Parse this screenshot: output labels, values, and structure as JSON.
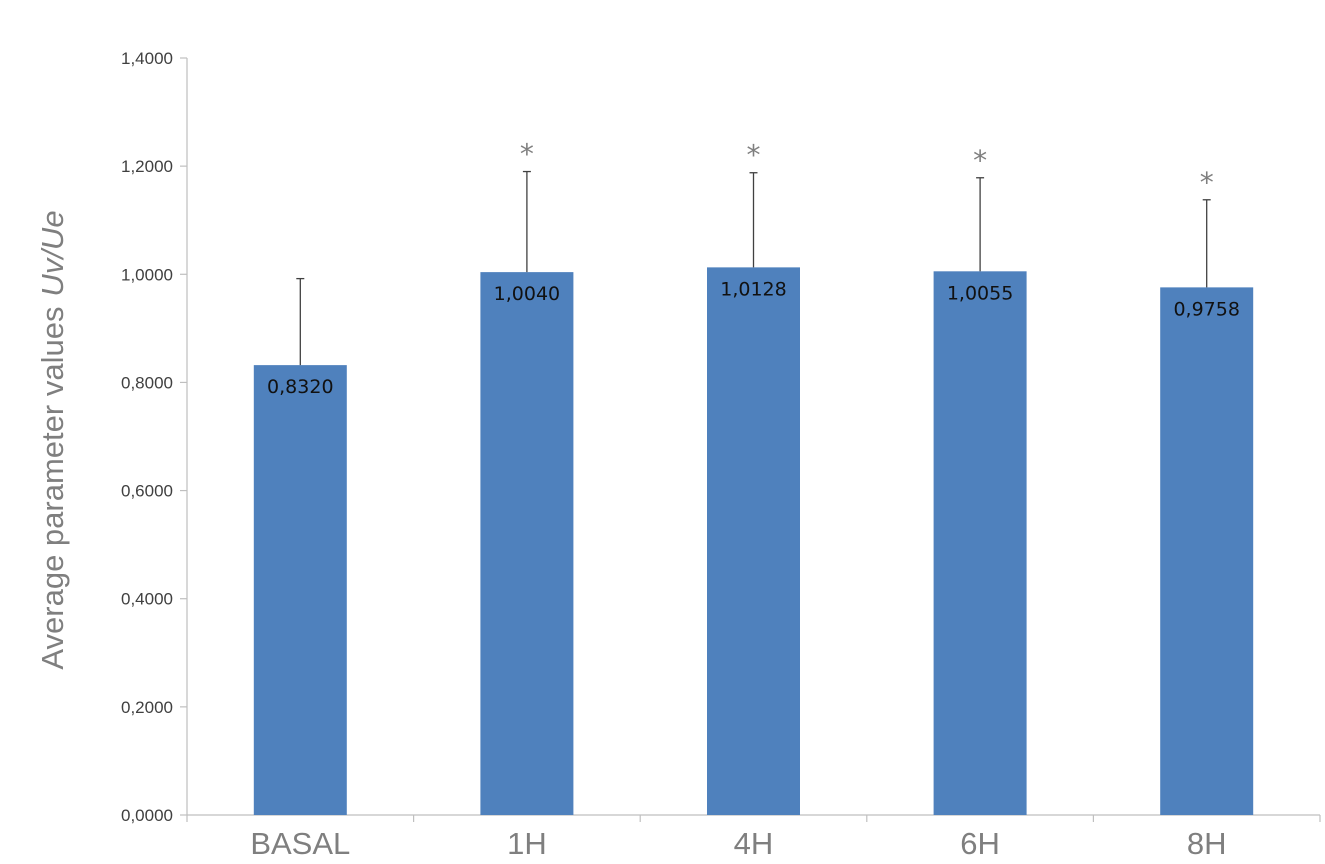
{
  "chart_data": {
    "type": "bar",
    "categories": [
      "BASAL",
      "1H",
      "4H",
      "6H",
      "8H"
    ],
    "values": [
      0.832,
      1.004,
      1.0128,
      1.0055,
      0.9758
    ],
    "value_labels": [
      "0,8320",
      "1,0040",
      "1,0128",
      "1,0055",
      "0,9758"
    ],
    "error_upper": [
      0.16,
      0.186,
      0.175,
      0.173,
      0.162
    ],
    "significance": [
      "",
      "*",
      "*",
      "*",
      "*"
    ],
    "ylabel": "Average parameter values",
    "ylabel_italic": "Uv/Ue",
    "xlabel": "",
    "title": "",
    "ylim": [
      0,
      1.4
    ],
    "yticks": [
      0,
      0.2,
      0.4,
      0.6,
      0.8,
      1.0,
      1.2,
      1.4
    ],
    "ytick_labels": [
      "0,0000",
      "0,2000",
      "0,4000",
      "0,6000",
      "0,8000",
      "1,0000",
      "1,2000",
      "1,4000"
    ],
    "grid": false,
    "legend": "none",
    "colors": {
      "bar": "#4f81bd",
      "axis": "#bfbfbf",
      "error_bar": "#404040",
      "category_text": "#7f7f7f",
      "tick_text": "#404040"
    }
  }
}
